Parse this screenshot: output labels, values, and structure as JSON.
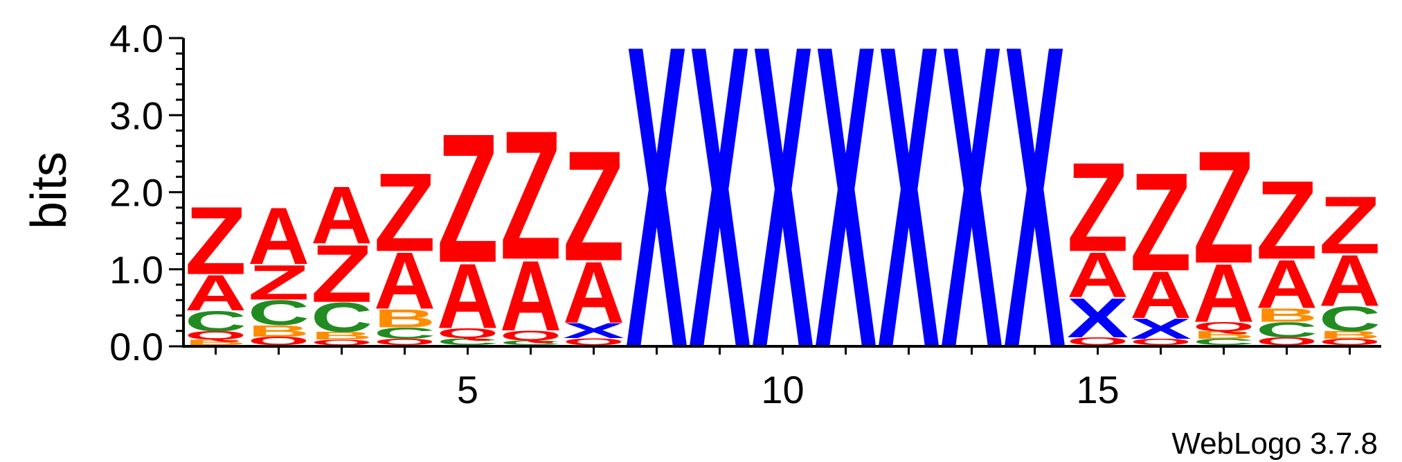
{
  "chart_data": {
    "type": "sequence-logo",
    "ylabel": "bits",
    "ylim": [
      0,
      4.0
    ],
    "y_ticks": [
      "0.0",
      "1.0",
      "2.0",
      "3.0",
      "4.0"
    ],
    "x_ticks": [
      "5",
      "10",
      "15"
    ],
    "x_tick_positions": [
      5,
      10,
      15
    ],
    "credit": "WebLogo 3.7.8",
    "colors": {
      "Z": "#ff0000",
      "A": "#ff0000",
      "Q": "#ff0000",
      "X": "#0000ff",
      "C": "#228b22",
      "B": "#ff8c00"
    },
    "positions": [
      {
        "pos": 1,
        "stack": [
          [
            "B",
            0.07
          ],
          [
            "Q",
            0.11
          ],
          [
            "C",
            0.27
          ],
          [
            "A",
            0.47
          ],
          [
            "Z",
            0.9
          ]
        ]
      },
      {
        "pos": 2,
        "stack": [
          [
            "Q",
            0.11
          ],
          [
            "B",
            0.15
          ],
          [
            "C",
            0.33
          ],
          [
            "Z",
            0.46
          ],
          [
            "A",
            0.75
          ]
        ]
      },
      {
        "pos": 3,
        "stack": [
          [
            "Q",
            0.07
          ],
          [
            "B",
            0.1
          ],
          [
            "C",
            0.39
          ],
          [
            "Z",
            0.76
          ],
          [
            "A",
            0.76
          ]
        ]
      },
      {
        "pos": 4,
        "stack": [
          [
            "Q",
            0.08
          ],
          [
            "C",
            0.15
          ],
          [
            "B",
            0.24
          ],
          [
            "A",
            0.75
          ],
          [
            "Z",
            1.04
          ]
        ]
      },
      {
        "pos": 5,
        "stack": [
          [
            "C",
            0.09
          ],
          [
            "Q",
            0.13
          ],
          [
            "A",
            0.86
          ],
          [
            "Z",
            1.71
          ]
        ]
      },
      {
        "pos": 6,
        "stack": [
          [
            "C",
            0.06
          ],
          [
            "Q",
            0.13
          ],
          [
            "A",
            0.93
          ],
          [
            "Z",
            1.71
          ]
        ]
      },
      {
        "pos": 7,
        "stack": [
          [
            "Q",
            0.09
          ],
          [
            "X",
            0.2
          ],
          [
            "A",
            0.81
          ],
          [
            "Z",
            1.46
          ]
        ]
      },
      {
        "pos": 8,
        "stack": [
          [
            "X",
            4.0
          ]
        ]
      },
      {
        "pos": 9,
        "stack": [
          [
            "X",
            4.0
          ]
        ]
      },
      {
        "pos": 10,
        "stack": [
          [
            "X",
            4.0
          ]
        ]
      },
      {
        "pos": 11,
        "stack": [
          [
            "X",
            4.0
          ]
        ]
      },
      {
        "pos": 12,
        "stack": [
          [
            "X",
            4.0
          ]
        ]
      },
      {
        "pos": 13,
        "stack": [
          [
            "X",
            4.0
          ]
        ]
      },
      {
        "pos": 14,
        "stack": [
          [
            "X",
            4.0
          ]
        ]
      },
      {
        "pos": 15,
        "stack": [
          [
            "Q",
            0.1
          ],
          [
            "X",
            0.52
          ],
          [
            "A",
            0.6
          ],
          [
            "Z",
            1.18
          ]
        ]
      },
      {
        "pos": 16,
        "stack": [
          [
            "Q",
            0.08
          ],
          [
            "X",
            0.27
          ],
          [
            "A",
            0.62
          ],
          [
            "Z",
            1.3
          ]
        ]
      },
      {
        "pos": 17,
        "stack": [
          [
            "C",
            0.08
          ],
          [
            "B",
            0.1
          ],
          [
            "Q",
            0.12
          ],
          [
            "A",
            0.77
          ],
          [
            "Z",
            1.49
          ]
        ]
      },
      {
        "pos": 18,
        "stack": [
          [
            "Q",
            0.1
          ],
          [
            "C",
            0.2
          ],
          [
            "B",
            0.18
          ],
          [
            "A",
            0.64
          ],
          [
            "Z",
            1.04
          ]
        ]
      },
      {
        "pos": 19,
        "stack": [
          [
            "Q",
            0.08
          ],
          [
            "B",
            0.1
          ],
          [
            "C",
            0.33
          ],
          [
            "A",
            0.68
          ],
          [
            "Z",
            0.76
          ]
        ]
      }
    ]
  }
}
